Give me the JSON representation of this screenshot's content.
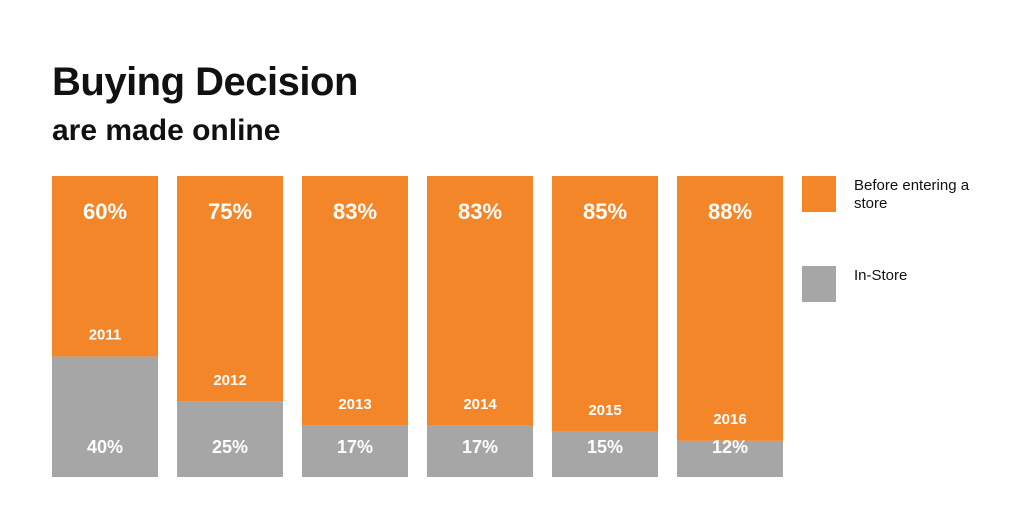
{
  "title": "Buying Decision",
  "subtitle": "are made online",
  "colors": {
    "before_store": "#F4862A",
    "in_store": "#A6A6A6"
  },
  "legend": [
    {
      "label": "Before entering a store",
      "color": "#F4862A"
    },
    {
      "label": "In-Store",
      "color": "#A6A6A6"
    }
  ],
  "chart_data": {
    "type": "bar",
    "stacked": true,
    "categories": [
      "2011",
      "2012",
      "2013",
      "2014",
      "2015",
      "2016"
    ],
    "series": [
      {
        "name": "Before entering a store",
        "values": [
          60,
          75,
          83,
          83,
          85,
          88
        ],
        "labels": [
          "60%",
          "75%",
          "83%",
          "83%",
          "85%",
          "88%"
        ]
      },
      {
        "name": "In-Store",
        "values": [
          40,
          25,
          17,
          17,
          15,
          12
        ],
        "labels": [
          "40%",
          "25%",
          "17%",
          "17%",
          "15%",
          "12%"
        ]
      }
    ],
    "ylim": [
      0,
      100
    ],
    "grid": false,
    "legend_position": "right"
  }
}
